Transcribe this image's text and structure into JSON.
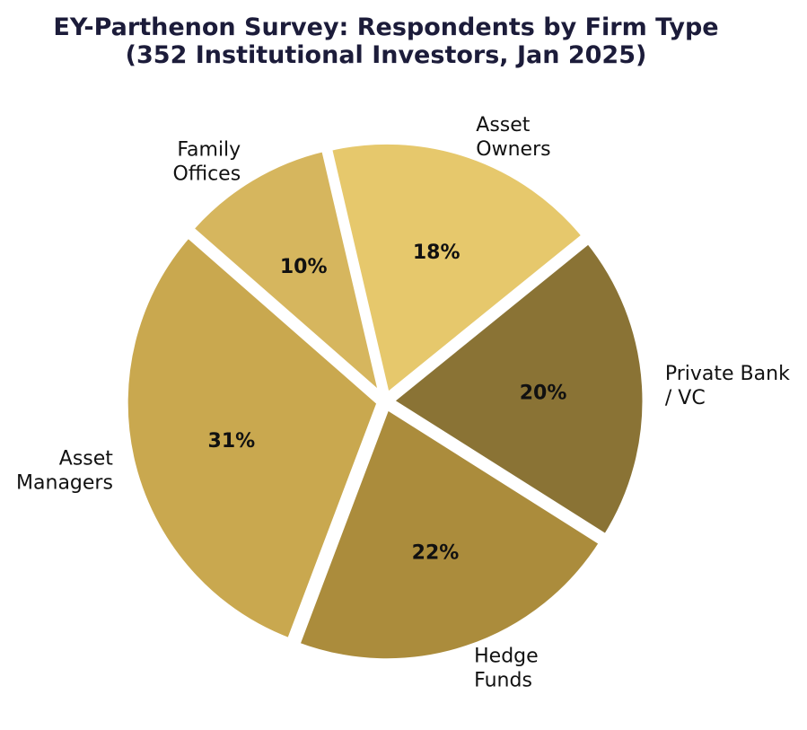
{
  "chart_data": {
    "type": "pie",
    "title": "EY-Parthenon Survey: Respondents by Firm Type",
    "subtitle": "(352 Institutional Investors, Jan 2025)",
    "slices": [
      {
        "label_lines": [
          "Asset",
          "Owners"
        ],
        "value": 18,
        "pct_label": "18%",
        "color": "#e6c86c"
      },
      {
        "label_lines": [
          "Family",
          "Offices"
        ],
        "value": 10,
        "pct_label": "10%",
        "color": "#d6b65e"
      },
      {
        "label_lines": [
          "Asset",
          "Managers"
        ],
        "value": 31,
        "pct_label": "31%",
        "color": "#c9a84f"
      },
      {
        "label_lines": [
          "Hedge",
          "Funds"
        ],
        "value": 22,
        "pct_label": "22%",
        "color": "#ab8c3c"
      },
      {
        "label_lines": [
          "Private Bank",
          "/ VC"
        ],
        "value": 20,
        "pct_label": "20%",
        "color": "#8a7335"
      }
    ],
    "start_angle_deg": 39,
    "direction": "counterclockwise",
    "exploded": true
  }
}
